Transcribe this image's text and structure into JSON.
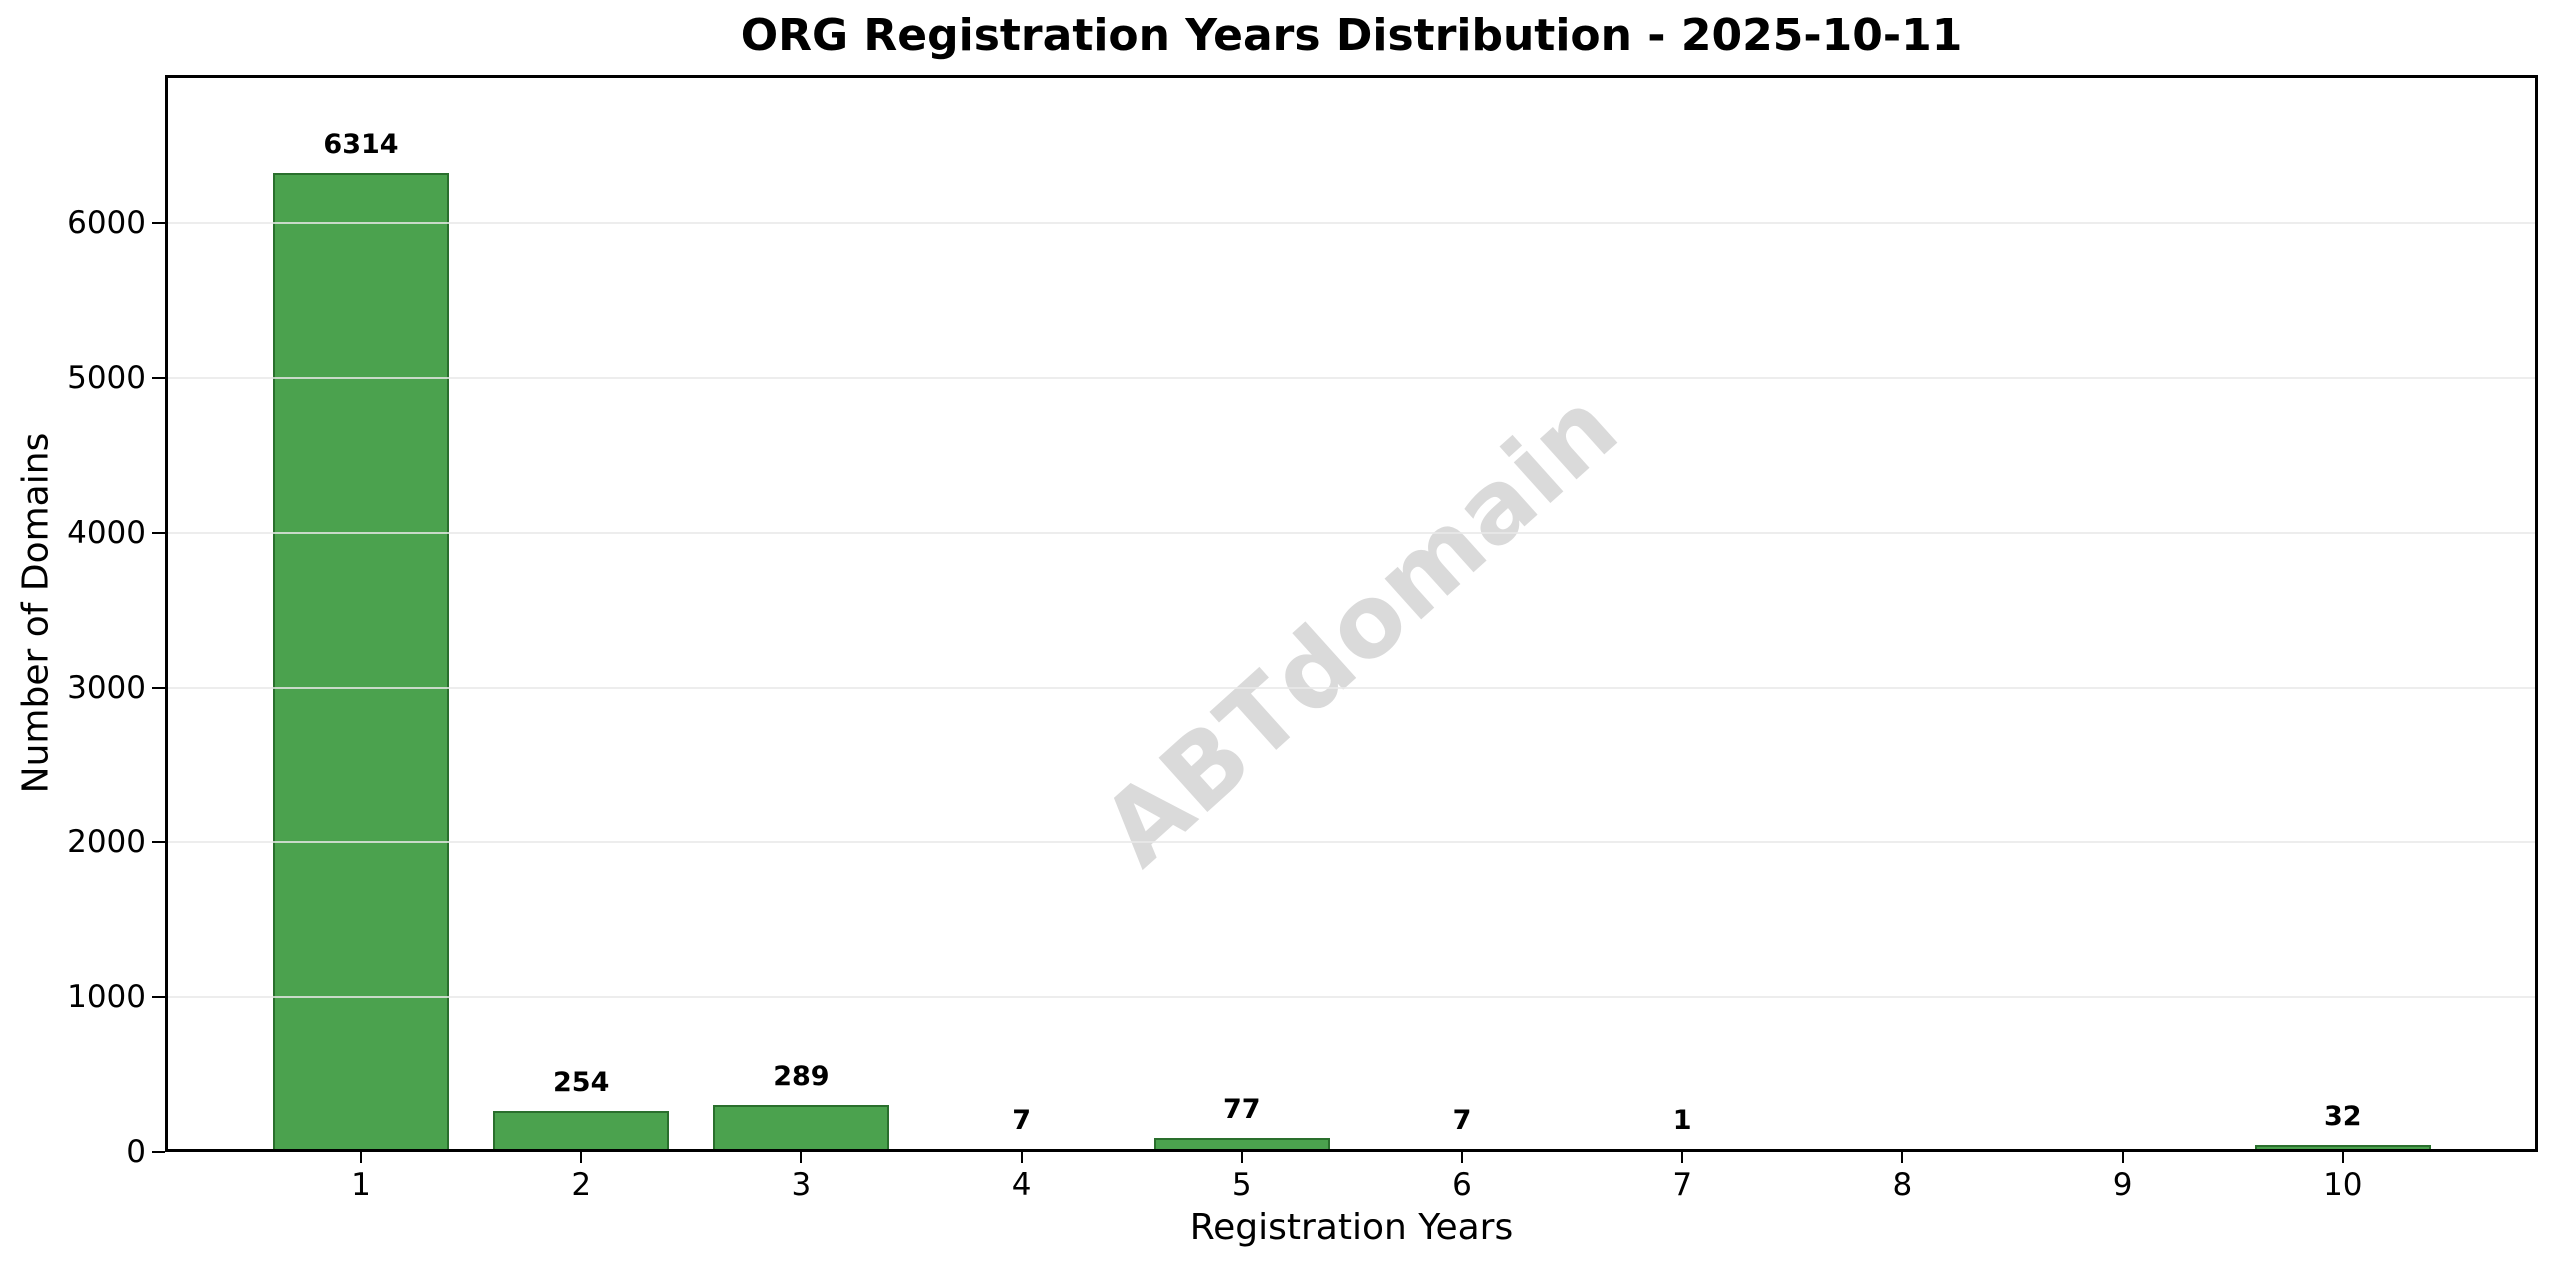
{
  "chart_data": {
    "type": "bar",
    "title": "ORG Registration Years Distribution - 2025-10-11",
    "xlabel": "Registration Years",
    "ylabel": "Number of Domains",
    "categories": [
      "1",
      "2",
      "3",
      "4",
      "5",
      "6",
      "7",
      "8",
      "9",
      "10"
    ],
    "values": [
      6314,
      254,
      289,
      7,
      77,
      7,
      1,
      0,
      0,
      32
    ],
    "bar_labels": [
      "6314",
      "254",
      "289",
      "7",
      "77",
      "7",
      "1",
      "",
      "",
      "32"
    ],
    "ylim": [
      0,
      6958
    ],
    "yticks": [
      0,
      1000,
      2000,
      3000,
      4000,
      5000,
      6000
    ],
    "ytick_labels": [
      "0",
      "1000",
      "2000",
      "3000",
      "4000",
      "5000",
      "6000"
    ],
    "grid": "horizontal-gridlines-on",
    "legend": "none",
    "watermark": "ABTdomain",
    "colors": {
      "bar_fill": "#4BA24E",
      "bar_edge": "#2A6F2D",
      "gridline": "#E9E9E9",
      "watermark": "#DADADA",
      "text": "#000000",
      "background": "#FFFFFF"
    }
  }
}
